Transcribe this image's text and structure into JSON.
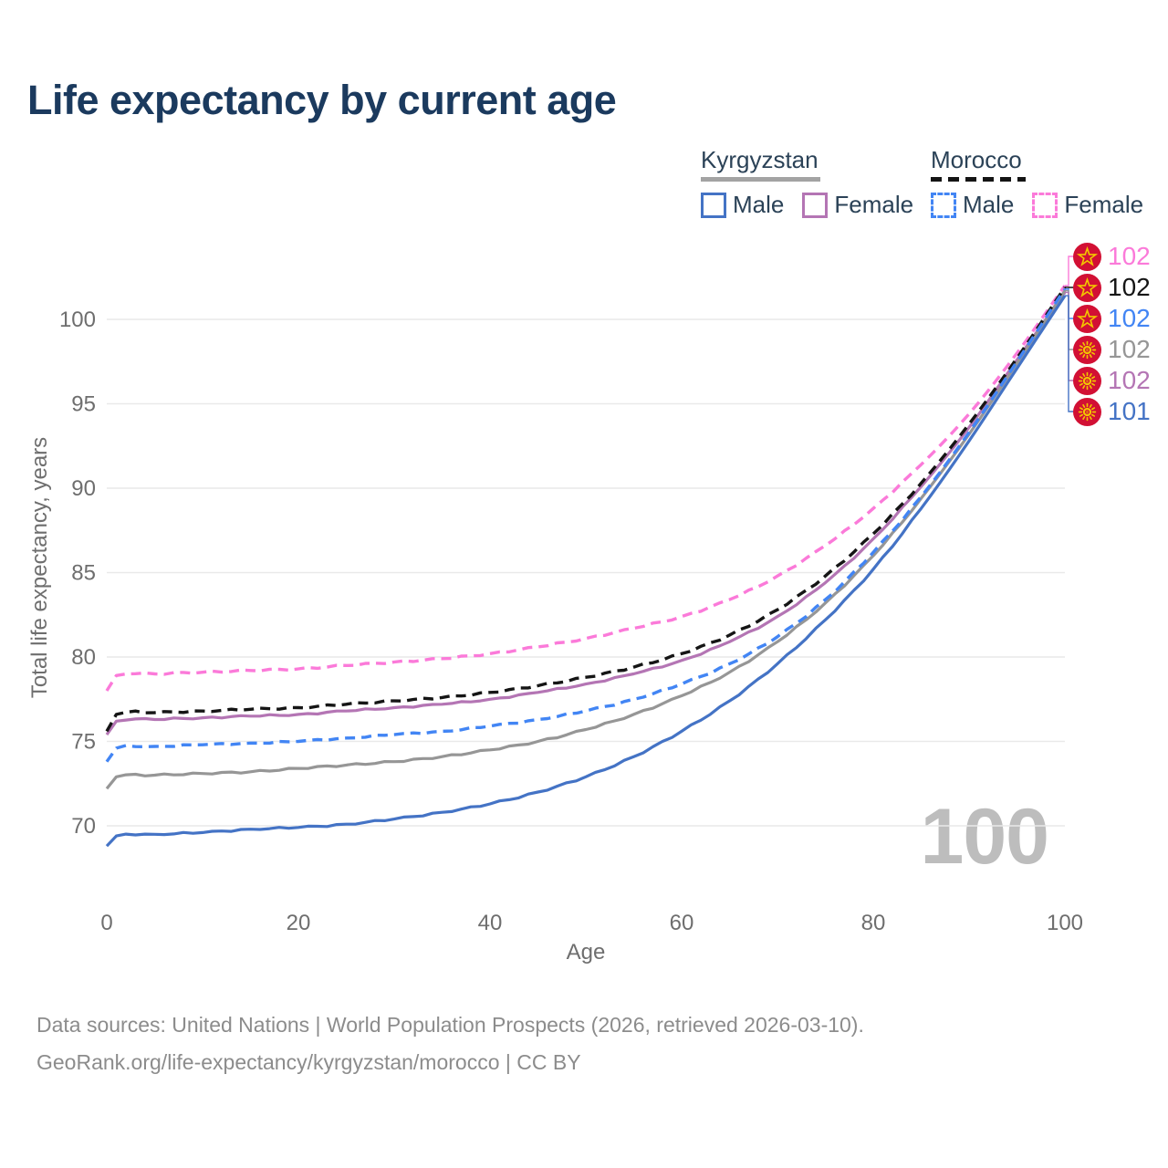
{
  "page": {
    "title": "Life expectancy by current age"
  },
  "colors": {
    "title_text": "#1b3a5e",
    "legend_text": "#2b4257",
    "axis_text": "#6e6e6e",
    "grid": "#e9e9e9",
    "footer_text": "#8c8c8c",
    "watermark_text": "#bdbdbd",
    "flag_red": "#d21034",
    "flag_gold": "#f2c500",
    "kyrgyzstan_underline": "#a3a3a3",
    "morocco_underline": "#141414"
  },
  "legend": {
    "groups": [
      {
        "name": "Kyrgyzstan",
        "line_style": "solid",
        "items": [
          {
            "label": "Male",
            "color": "#4473c5"
          },
          {
            "label": "Female",
            "color": "#b475b4"
          }
        ]
      },
      {
        "name": "Morocco",
        "line_style": "dashed",
        "items": [
          {
            "label": "Male",
            "color": "#4285f4"
          },
          {
            "label": "Female",
            "color": "#fb7ad9"
          }
        ]
      }
    ]
  },
  "chart_data": {
    "type": "line",
    "title": "Life expectancy by current age",
    "xlabel": "Age",
    "ylabel": "Total life expectancy, years",
    "x_ticks": [
      0,
      20,
      40,
      60,
      80,
      100
    ],
    "y_ticks": [
      70,
      75,
      80,
      85,
      90,
      95,
      100
    ],
    "xlim": [
      0,
      100
    ],
    "ylim": [
      67.5,
      103.5
    ],
    "grid": "horizontal",
    "legend_position": "top-right",
    "ages": [
      0,
      1,
      5,
      10,
      15,
      20,
      25,
      30,
      35,
      40,
      45,
      50,
      55,
      60,
      65,
      70,
      75,
      80,
      85,
      90,
      95,
      100
    ],
    "series": [
      {
        "name": "Morocco Female",
        "country": "Morocco",
        "sex": "Female",
        "color": "#fb7ad9",
        "dash": true,
        "values": [
          78.0,
          78.9,
          79.0,
          79.1,
          79.2,
          79.3,
          79.5,
          79.7,
          79.9,
          80.2,
          80.6,
          81.1,
          81.7,
          82.4,
          83.4,
          84.8,
          86.6,
          88.8,
          91.4,
          94.4,
          98.0,
          102.0
        ]
      },
      {
        "name": "Morocco",
        "country": "Morocco",
        "sex": "Both",
        "color": "#151515",
        "dash": true,
        "values": [
          75.6,
          76.6,
          76.7,
          76.8,
          76.9,
          77.0,
          77.2,
          77.4,
          77.6,
          77.9,
          78.3,
          78.8,
          79.4,
          80.2,
          81.3,
          82.8,
          84.8,
          87.3,
          90.3,
          93.8,
          97.7,
          101.9
        ]
      },
      {
        "name": "Morocco Male",
        "country": "Morocco",
        "sex": "Male",
        "color": "#4285f4",
        "dash": true,
        "values": [
          73.8,
          74.6,
          74.7,
          74.8,
          74.9,
          75.0,
          75.2,
          75.4,
          75.6,
          75.9,
          76.3,
          76.8,
          77.5,
          78.4,
          79.6,
          81.2,
          83.4,
          86.2,
          89.5,
          93.3,
          97.5,
          101.8
        ]
      },
      {
        "name": "Kyrgyzstan Female",
        "country": "Kyrgyzstan",
        "sex": "Female",
        "color": "#b475b4",
        "dash": false,
        "values": [
          75.4,
          76.2,
          76.3,
          76.4,
          76.5,
          76.6,
          76.8,
          77.0,
          77.2,
          77.5,
          77.9,
          78.4,
          79.0,
          79.8,
          80.9,
          82.4,
          84.4,
          87.0,
          90.1,
          93.6,
          97.6,
          101.6
        ]
      },
      {
        "name": "Kyrgyzstan",
        "country": "Kyrgyzstan",
        "sex": "Both",
        "color": "#969696",
        "dash": false,
        "values": [
          72.2,
          72.9,
          73.0,
          73.1,
          73.2,
          73.4,
          73.6,
          73.8,
          74.1,
          74.5,
          75.0,
          75.7,
          76.6,
          77.7,
          79.1,
          80.9,
          83.2,
          86.0,
          89.4,
          93.2,
          97.4,
          101.7
        ]
      },
      {
        "name": "Kyrgyzstan Male",
        "country": "Kyrgyzstan",
        "sex": "Male",
        "color": "#4473c5",
        "dash": false,
        "values": [
          68.8,
          69.4,
          69.5,
          69.6,
          69.8,
          69.9,
          70.1,
          70.4,
          70.8,
          71.3,
          72.0,
          72.9,
          74.1,
          75.6,
          77.4,
          79.6,
          82.2,
          85.2,
          88.8,
          92.8,
          97.1,
          101.4
        ]
      }
    ]
  },
  "end_labels": [
    {
      "value": "102",
      "color": "#fb7ad9",
      "flag": "morocco",
      "series": "Morocco Female"
    },
    {
      "value": "102",
      "color": "#151515",
      "flag": "morocco",
      "series": "Morocco"
    },
    {
      "value": "102",
      "color": "#4285f4",
      "flag": "morocco",
      "series": "Morocco Male"
    },
    {
      "value": "102",
      "color": "#969696",
      "flag": "kyrgyzstan",
      "series": "Kyrgyzstan"
    },
    {
      "value": "102",
      "color": "#b475b4",
      "flag": "kyrgyzstan",
      "series": "Kyrgyzstan Female"
    },
    {
      "value": "101",
      "color": "#4473c5",
      "flag": "kyrgyzstan",
      "series": "Kyrgyzstan Male"
    }
  ],
  "watermark": "100",
  "footer": {
    "line1": "Data sources: United Nations | World Population Prospects (2026, retrieved 2026-03-10).",
    "line2": "GeoRank.org/life-expectancy/kyrgyzstan/morocco | CC BY"
  }
}
